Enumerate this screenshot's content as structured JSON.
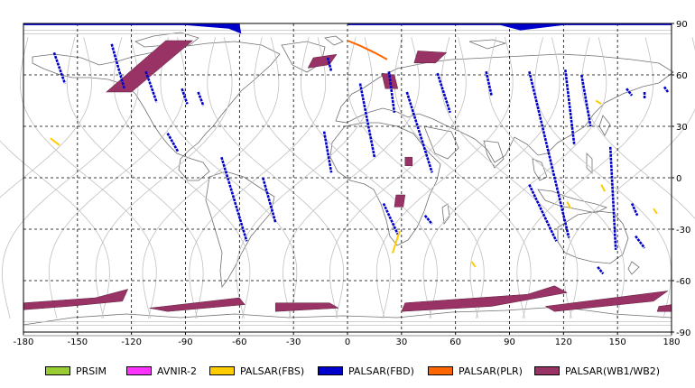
{
  "axes": {
    "x_ticks": [
      -180,
      -150,
      -120,
      -90,
      -60,
      -30,
      0,
      30,
      60,
      90,
      120,
      150,
      180
    ],
    "y_ticks": [
      90,
      60,
      30,
      0,
      -30,
      -60,
      -90
    ]
  },
  "legend": [
    {
      "label": "PRSIM",
      "color": "#99cc33"
    },
    {
      "label": "AVNIR-2",
      "color": "#ff33ff"
    },
    {
      "label": "PALSAR(FBS)",
      "color": "#ffcc00"
    },
    {
      "label": "PALSAR(FBD)",
      "color": "#0000cc"
    },
    {
      "label": "PALSAR(PLR)",
      "color": "#ff6600"
    },
    {
      "label": "PALSAR(WB1/WB2)",
      "color": "#993366"
    }
  ],
  "observations": {
    "fbd_strips": [
      [
        [
          -163,
          73
        ],
        [
          -157,
          55
        ]
      ],
      [
        [
          -131,
          78
        ],
        [
          -124,
          52
        ]
      ],
      [
        [
          -112,
          62
        ],
        [
          -106,
          44
        ]
      ],
      [
        [
          -83,
          50
        ],
        [
          -80,
          42
        ]
      ],
      [
        [
          -92,
          52
        ],
        [
          -89,
          43
        ]
      ],
      [
        [
          -100,
          26
        ],
        [
          -94,
          15
        ]
      ],
      [
        [
          -70,
          12
        ],
        [
          -56,
          -37
        ]
      ],
      [
        [
          -47,
          0
        ],
        [
          -40,
          -26
        ]
      ],
      [
        [
          -11,
          70
        ],
        [
          -9,
          62
        ]
      ],
      [
        [
          7,
          55
        ],
        [
          15,
          12
        ]
      ],
      [
        [
          -13,
          27
        ],
        [
          -9,
          3
        ]
      ],
      [
        [
          33,
          50
        ],
        [
          47,
          3
        ]
      ],
      [
        [
          23,
          62
        ],
        [
          26,
          38
        ]
      ],
      [
        [
          50,
          61
        ],
        [
          57,
          38
        ]
      ],
      [
        [
          77,
          62
        ],
        [
          80,
          48
        ]
      ],
      [
        [
          20,
          -15
        ],
        [
          28,
          -33
        ]
      ],
      [
        [
          43,
          -22
        ],
        [
          47,
          -27
        ]
      ],
      [
        [
          101,
          62
        ],
        [
          123,
          -35
        ]
      ],
      [
        [
          121,
          63
        ],
        [
          126,
          19
        ]
      ],
      [
        [
          101,
          -4
        ],
        [
          116,
          -37
        ]
      ],
      [
        [
          130,
          60
        ],
        [
          135,
          30
        ]
      ],
      [
        [
          146,
          18
        ],
        [
          149,
          -42
        ]
      ],
      [
        [
          160,
          -34
        ],
        [
          165,
          -41
        ]
      ],
      [
        [
          155,
          52
        ],
        [
          158,
          48
        ]
      ],
      [
        [
          165,
          50
        ],
        [
          165,
          46
        ]
      ],
      [
        [
          176,
          53
        ],
        [
          178,
          50
        ]
      ],
      [
        [
          158,
          -15
        ],
        [
          161,
          -22
        ]
      ],
      [
        [
          139,
          -52
        ],
        [
          142,
          -56
        ]
      ]
    ],
    "fbs_strips": [
      [
        [
          -165,
          23
        ],
        [
          -160,
          19
        ]
      ],
      [
        [
          29,
          -31
        ],
        [
          25,
          -44
        ]
      ],
      [
        [
          69,
          -49
        ],
        [
          71,
          -52
        ]
      ],
      [
        [
          141,
          -4
        ],
        [
          143,
          -8
        ]
      ],
      [
        [
          122,
          -14
        ],
        [
          124,
          -18
        ]
      ],
      [
        [
          138,
          45
        ],
        [
          141,
          43
        ]
      ],
      [
        [
          170,
          -18
        ],
        [
          172,
          -21
        ]
      ]
    ],
    "plr_strips": [
      [
        [
          0,
          80
        ],
        [
          7,
          77
        ],
        [
          15,
          73
        ],
        [
          22,
          69
        ]
      ]
    ],
    "wb_polygons": [
      [
        [
          -101,
          80
        ],
        [
          -86,
          80
        ],
        [
          -120,
          50
        ],
        [
          -134,
          50
        ]
      ],
      [
        [
          -19,
          70
        ],
        [
          -6,
          72
        ],
        [
          -10,
          66
        ],
        [
          -22,
          64
        ]
      ],
      [
        [
          39,
          74
        ],
        [
          55,
          73
        ],
        [
          49,
          67
        ],
        [
          37,
          67
        ]
      ],
      [
        [
          19,
          61
        ],
        [
          26,
          60
        ],
        [
          28,
          52
        ],
        [
          21,
          52
        ]
      ],
      [
        [
          32,
          12
        ],
        [
          36,
          12
        ],
        [
          36,
          7
        ],
        [
          32,
          7
        ]
      ],
      [
        [
          27,
          -10
        ],
        [
          32,
          -10
        ],
        [
          31,
          -17
        ],
        [
          26,
          -17
        ]
      ],
      [
        [
          -180,
          -73
        ],
        [
          -140,
          -70
        ],
        [
          -122,
          -65
        ],
        [
          -125,
          -72
        ],
        [
          -155,
          -75
        ],
        [
          -180,
          -77
        ]
      ],
      [
        [
          -110,
          -76
        ],
        [
          -60,
          -70
        ],
        [
          -57,
          -74
        ],
        [
          -100,
          -78
        ]
      ],
      [
        [
          -40,
          -73
        ],
        [
          -10,
          -73
        ],
        [
          -5,
          -76
        ],
        [
          -40,
          -78
        ]
      ],
      [
        [
          32,
          -73
        ],
        [
          100,
          -68
        ],
        [
          115,
          -63
        ],
        [
          122,
          -67
        ],
        [
          80,
          -75
        ],
        [
          30,
          -78
        ]
      ],
      [
        [
          110,
          -75
        ],
        [
          178,
          -66
        ],
        [
          170,
          -72
        ],
        [
          115,
          -78
        ]
      ],
      [
        [
          173,
          -75
        ],
        [
          180,
          -74
        ],
        [
          180,
          -78
        ],
        [
          172,
          -78
        ]
      ]
    ],
    "top_bands": [
      [
        [
          -180,
          90
        ],
        [
          -60,
          90
        ],
        [
          -59,
          84
        ],
        [
          -66,
          87
        ],
        [
          -90,
          89
        ],
        [
          -150,
          89
        ],
        [
          -180,
          89
        ]
      ],
      [
        [
          0,
          90
        ],
        [
          180,
          90
        ],
        [
          180,
          89
        ],
        [
          120,
          89
        ],
        [
          96,
          86
        ],
        [
          85,
          89
        ],
        [
          40,
          89
        ],
        [
          0,
          89
        ]
      ]
    ]
  }
}
